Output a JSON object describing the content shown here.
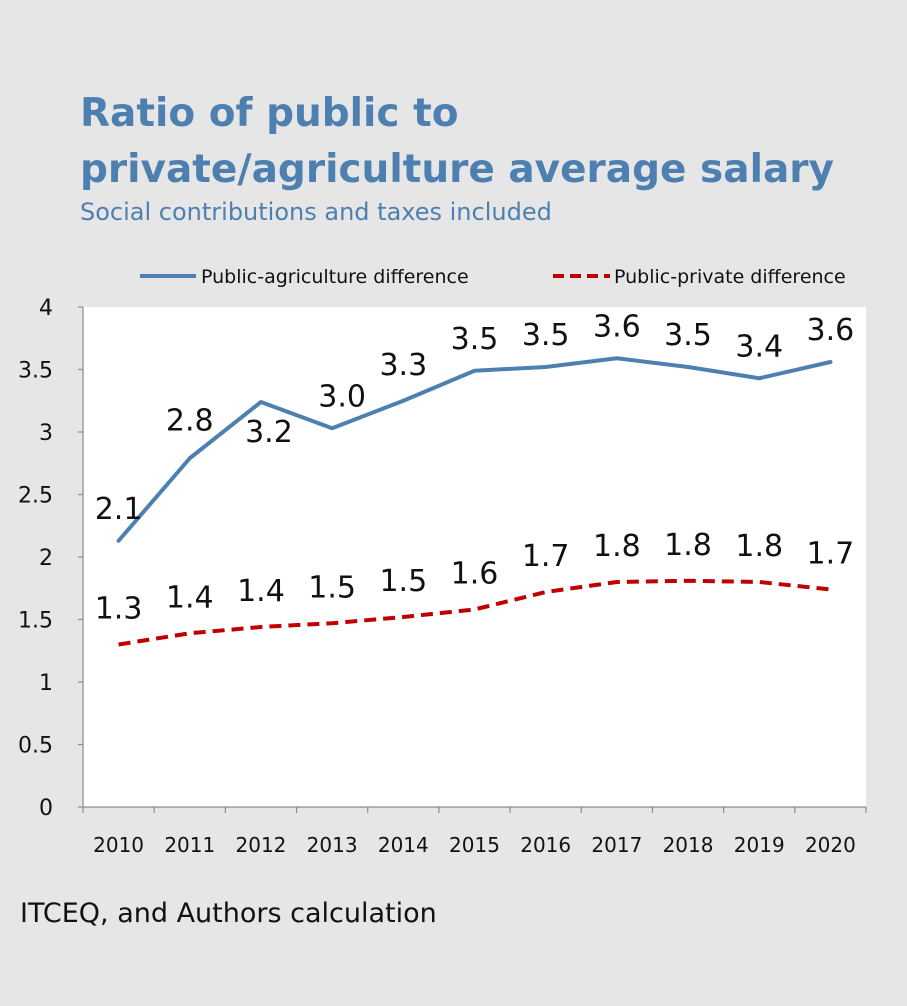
{
  "chart_data": {
    "type": "line",
    "title": "Ratio of public to private/agriculture average salary",
    "subtitle": "Social contributions and taxes included",
    "categories": [
      "2010",
      "2011",
      "2012",
      "2013",
      "2014",
      "2015",
      "2016",
      "2017",
      "2018",
      "2019",
      "2020"
    ],
    "series": [
      {
        "name": "Public-agriculture difference",
        "values": [
          2.13,
          2.79,
          3.24,
          3.03,
          3.25,
          3.49,
          3.52,
          3.59,
          3.52,
          3.43,
          3.56
        ],
        "labels": [
          "2.1",
          "2.8",
          "3.2",
          "3.0",
          "3.3",
          "3.5",
          "3.5",
          "3.6",
          "3.5",
          "3.4",
          "3.6"
        ],
        "color": "#4d80b0",
        "style": "solid"
      },
      {
        "name": "Public-private difference",
        "values": [
          1.3,
          1.39,
          1.44,
          1.47,
          1.52,
          1.58,
          1.72,
          1.8,
          1.81,
          1.8,
          1.74
        ],
        "labels": [
          "1.3",
          "1.4",
          "1.4",
          "1.5",
          "1.5",
          "1.6",
          "1.7",
          "1.8",
          "1.8",
          "1.8",
          "1.7"
        ],
        "color": "#c00000",
        "style": "dashed"
      }
    ],
    "y_ticks": [
      "0",
      "0.5",
      "1",
      "1.5",
      "2",
      "2.5",
      "3",
      "3.5",
      "4"
    ],
    "ylim": [
      0,
      4
    ],
    "xlabel": "",
    "ylabel": "",
    "grid": false,
    "legend_position": "top"
  },
  "source": "ITCEQ, and Authors calculation"
}
